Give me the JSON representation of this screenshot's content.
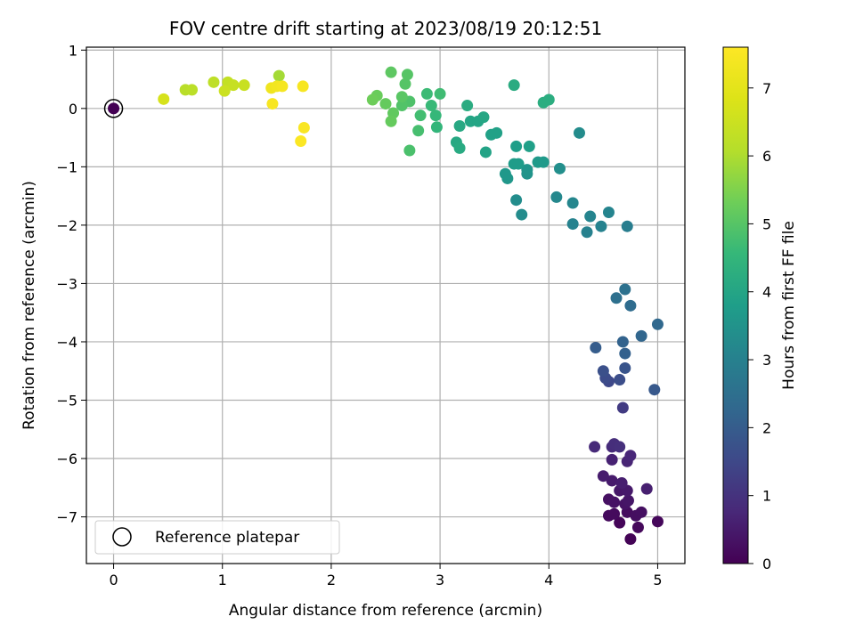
{
  "chart_data": {
    "type": "scatter",
    "title": "FOV centre drift starting at 2023/08/19 20:12:51",
    "xlabel": "Angular distance from reference (arcmin)",
    "ylabel": "Rotation from reference (arcmin)",
    "xlim": [
      -0.25,
      5.25
    ],
    "ylim": [
      -7.8,
      1.05
    ],
    "xticks": [
      0,
      1,
      2,
      3,
      4,
      5
    ],
    "yticks": [
      1,
      0,
      -1,
      -2,
      -3,
      -4,
      -5,
      -6,
      -7
    ],
    "xtick_labels": [
      "0",
      "1",
      "2",
      "3",
      "4",
      "5"
    ],
    "ytick_labels": [
      "1",
      "0",
      "−1",
      "−2",
      "−3",
      "−4",
      "−5",
      "−6",
      "−7"
    ],
    "grid": true,
    "colormap": "viridis",
    "colorbar": {
      "label": "Hours from first FF file",
      "range": [
        0,
        7.6
      ],
      "ticks": [
        0,
        1,
        2,
        3,
        4,
        5,
        6,
        7
      ],
      "tick_labels": [
        "0",
        "1",
        "2",
        "3",
        "4",
        "5",
        "6",
        "7"
      ]
    },
    "legend": {
      "position": "lower-left",
      "entries": [
        "Reference platepar"
      ]
    },
    "reference_point": {
      "x": 0,
      "y": 0
    },
    "points": [
      {
        "x": 4.75,
        "y": -7.38,
        "c": 0.05
      },
      {
        "x": 4.65,
        "y": -7.1,
        "c": 0.1
      },
      {
        "x": 5.0,
        "y": -7.08,
        "c": 0.12
      },
      {
        "x": 4.82,
        "y": -7.18,
        "c": 0.15
      },
      {
        "x": 4.55,
        "y": -6.98,
        "c": 0.18
      },
      {
        "x": 4.6,
        "y": -6.95,
        "c": 0.2
      },
      {
        "x": 4.72,
        "y": -6.92,
        "c": 0.22
      },
      {
        "x": 4.8,
        "y": -6.98,
        "c": 0.25
      },
      {
        "x": 4.85,
        "y": -6.92,
        "c": 0.28
      },
      {
        "x": 4.55,
        "y": -6.7,
        "c": 0.3
      },
      {
        "x": 4.6,
        "y": -6.75,
        "c": 0.33
      },
      {
        "x": 4.7,
        "y": -6.78,
        "c": 0.36
      },
      {
        "x": 4.73,
        "y": -6.72,
        "c": 0.4
      },
      {
        "x": 4.65,
        "y": -6.55,
        "c": 0.43
      },
      {
        "x": 4.72,
        "y": -6.55,
        "c": 0.46
      },
      {
        "x": 4.58,
        "y": -6.38,
        "c": 0.5
      },
      {
        "x": 4.5,
        "y": -6.3,
        "c": 0.53
      },
      {
        "x": 4.67,
        "y": -6.42,
        "c": 0.56
      },
      {
        "x": 4.9,
        "y": -6.52,
        "c": 0.6
      },
      {
        "x": 4.58,
        "y": -6.02,
        "c": 0.65
      },
      {
        "x": 4.72,
        "y": -6.05,
        "c": 0.7
      },
      {
        "x": 4.75,
        "y": -5.95,
        "c": 0.75
      },
      {
        "x": 4.42,
        "y": -5.8,
        "c": 0.8
      },
      {
        "x": 4.58,
        "y": -5.8,
        "c": 0.85
      },
      {
        "x": 4.6,
        "y": -5.75,
        "c": 0.9
      },
      {
        "x": 4.65,
        "y": -5.8,
        "c": 0.95
      },
      {
        "x": 4.68,
        "y": -5.13,
        "c": 1.2
      },
      {
        "x": 4.55,
        "y": -4.68,
        "c": 1.5
      },
      {
        "x": 4.52,
        "y": -4.62,
        "c": 1.6
      },
      {
        "x": 4.65,
        "y": -4.65,
        "c": 1.65
      },
      {
        "x": 4.5,
        "y": -4.5,
        "c": 1.7
      },
      {
        "x": 4.7,
        "y": -4.45,
        "c": 1.8
      },
      {
        "x": 4.97,
        "y": -4.82,
        "c": 1.9
      },
      {
        "x": 4.43,
        "y": -4.1,
        "c": 2.0
      },
      {
        "x": 4.7,
        "y": -4.2,
        "c": 2.1
      },
      {
        "x": 4.68,
        "y": -4.0,
        "c": 2.15
      },
      {
        "x": 4.85,
        "y": -3.9,
        "c": 2.25
      },
      {
        "x": 5.0,
        "y": -3.7,
        "c": 2.3
      },
      {
        "x": 4.75,
        "y": -3.38,
        "c": 2.4
      },
      {
        "x": 4.62,
        "y": -3.25,
        "c": 2.5
      },
      {
        "x": 4.7,
        "y": -3.1,
        "c": 2.55
      },
      {
        "x": 4.72,
        "y": -2.02,
        "c": 2.9
      },
      {
        "x": 4.35,
        "y": -2.12,
        "c": 3.0
      },
      {
        "x": 4.48,
        "y": -2.02,
        "c": 3.05
      },
      {
        "x": 4.22,
        "y": -1.98,
        "c": 3.05
      },
      {
        "x": 4.38,
        "y": -1.85,
        "c": 3.1
      },
      {
        "x": 4.55,
        "y": -1.78,
        "c": 3.1
      },
      {
        "x": 4.22,
        "y": -1.62,
        "c": 3.15
      },
      {
        "x": 4.07,
        "y": -1.52,
        "c": 3.2
      },
      {
        "x": 4.28,
        "y": -0.42,
        "c": 3.3
      },
      {
        "x": 3.75,
        "y": -1.82,
        "c": 3.3
      },
      {
        "x": 3.7,
        "y": -1.57,
        "c": 3.35
      },
      {
        "x": 4.1,
        "y": -1.03,
        "c": 3.4
      },
      {
        "x": 3.8,
        "y": -1.12,
        "c": 3.5
      },
      {
        "x": 3.8,
        "y": -1.05,
        "c": 3.55
      },
      {
        "x": 3.62,
        "y": -1.2,
        "c": 3.6
      },
      {
        "x": 3.6,
        "y": -1.12,
        "c": 3.65
      },
      {
        "x": 3.9,
        "y": -0.92,
        "c": 3.7
      },
      {
        "x": 3.95,
        "y": -0.92,
        "c": 3.7
      },
      {
        "x": 3.68,
        "y": -0.95,
        "c": 3.75
      },
      {
        "x": 3.72,
        "y": -0.95,
        "c": 3.75
      },
      {
        "x": 3.7,
        "y": -0.65,
        "c": 3.8
      },
      {
        "x": 3.82,
        "y": -0.65,
        "c": 3.85
      },
      {
        "x": 3.47,
        "y": -0.45,
        "c": 3.9
      },
      {
        "x": 3.52,
        "y": -0.42,
        "c": 3.9
      },
      {
        "x": 3.42,
        "y": -0.75,
        "c": 3.95
      },
      {
        "x": 3.28,
        "y": -0.22,
        "c": 4.0
      },
      {
        "x": 3.35,
        "y": -0.22,
        "c": 4.0
      },
      {
        "x": 3.4,
        "y": -0.15,
        "c": 4.05
      },
      {
        "x": 3.18,
        "y": -0.3,
        "c": 4.1
      },
      {
        "x": 3.15,
        "y": -0.58,
        "c": 4.1
      },
      {
        "x": 3.18,
        "y": -0.68,
        "c": 4.15
      },
      {
        "x": 3.25,
        "y": 0.05,
        "c": 4.2
      },
      {
        "x": 3.68,
        "y": 0.4,
        "c": 4.2
      },
      {
        "x": 3.95,
        "y": 0.1,
        "c": 4.25
      },
      {
        "x": 4.0,
        "y": 0.15,
        "c": 4.25
      },
      {
        "x": 2.97,
        "y": -0.32,
        "c": 4.5
      },
      {
        "x": 2.96,
        "y": -0.12,
        "c": 4.55
      },
      {
        "x": 2.92,
        "y": 0.05,
        "c": 4.6
      },
      {
        "x": 2.88,
        "y": 0.25,
        "c": 4.65
      },
      {
        "x": 3.0,
        "y": 0.25,
        "c": 4.7
      },
      {
        "x": 2.82,
        "y": -0.12,
        "c": 4.75
      },
      {
        "x": 2.8,
        "y": -0.38,
        "c": 4.8
      },
      {
        "x": 2.72,
        "y": -0.72,
        "c": 4.85
      },
      {
        "x": 2.72,
        "y": 0.12,
        "c": 4.9
      },
      {
        "x": 2.65,
        "y": 0.05,
        "c": 4.95
      },
      {
        "x": 2.68,
        "y": 0.42,
        "c": 5.0
      },
      {
        "x": 2.7,
        "y": 0.58,
        "c": 5.0
      },
      {
        "x": 2.65,
        "y": 0.2,
        "c": 5.05
      },
      {
        "x": 2.55,
        "y": 0.62,
        "c": 5.1
      },
      {
        "x": 2.57,
        "y": -0.08,
        "c": 5.15
      },
      {
        "x": 2.55,
        "y": -0.22,
        "c": 5.2
      },
      {
        "x": 2.5,
        "y": 0.08,
        "c": 5.2
      },
      {
        "x": 2.42,
        "y": 0.22,
        "c": 5.25
      },
      {
        "x": 2.38,
        "y": 0.15,
        "c": 5.3
      },
      {
        "x": 1.52,
        "y": 0.56,
        "c": 5.9
      },
      {
        "x": 0.66,
        "y": 0.32,
        "c": 6.15
      },
      {
        "x": 0.72,
        "y": 0.32,
        "c": 6.2
      },
      {
        "x": 0.92,
        "y": 0.45,
        "c": 6.25
      },
      {
        "x": 1.05,
        "y": 0.45,
        "c": 6.35
      },
      {
        "x": 1.1,
        "y": 0.4,
        "c": 6.4
      },
      {
        "x": 1.2,
        "y": 0.4,
        "c": 6.45
      },
      {
        "x": 1.02,
        "y": 0.3,
        "c": 6.5
      },
      {
        "x": 0.46,
        "y": 0.16,
        "c": 6.7
      },
      {
        "x": 1.45,
        "y": 0.35,
        "c": 7.3
      },
      {
        "x": 1.5,
        "y": 0.38,
        "c": 7.35
      },
      {
        "x": 1.55,
        "y": 0.38,
        "c": 7.4
      },
      {
        "x": 1.74,
        "y": 0.38,
        "c": 7.45
      },
      {
        "x": 1.46,
        "y": 0.08,
        "c": 7.45
      },
      {
        "x": 1.75,
        "y": -0.33,
        "c": 7.5
      },
      {
        "x": 1.72,
        "y": -0.56,
        "c": 7.55
      },
      {
        "x": 0.0,
        "y": 0.0,
        "c": 0.0
      }
    ]
  }
}
